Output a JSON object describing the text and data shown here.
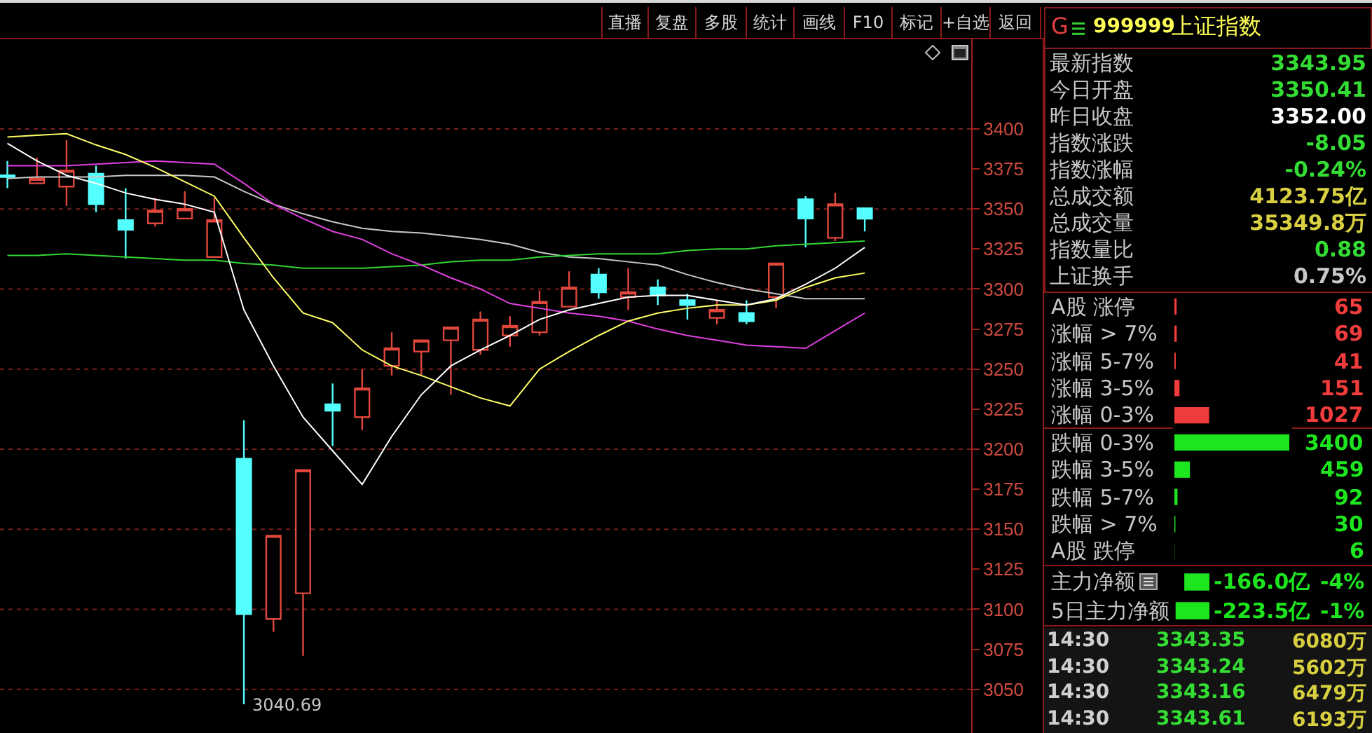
{
  "chart_data": [
    {
      "type": "candlestick",
      "categories": [
        null,
        null,
        null,
        null,
        null,
        null,
        null,
        null,
        null,
        null,
        null,
        null,
        null,
        null,
        null,
        null,
        null,
        null,
        null,
        null,
        null,
        null,
        null,
        null,
        null,
        null,
        null,
        null,
        null,
        null
      ],
      "ylim": [
        3021,
        3456
      ],
      "yticks": [
        3050,
        3075,
        3100,
        3125,
        3150,
        3175,
        3200,
        3225,
        3250,
        3275,
        3300,
        3325,
        3350,
        3375,
        3400
      ],
      "grid": "y",
      "tick_labels": "y",
      "annotations": [
        "3040.69"
      ],
      "series": [
        {
          "type": "line",
          "color": "#c8c8c8",
          "values": [
            3369,
            3370,
            3370,
            3370,
            3371,
            3371,
            3371,
            3370,
            3361,
            3353,
            3347,
            3342,
            3338,
            3336,
            3335,
            3333,
            3331,
            3328,
            3323,
            3320,
            3319,
            3317,
            3315,
            3309,
            3304,
            3300,
            3297,
            3294,
            3294,
            3294
          ]
        },
        {
          "type": "line",
          "color": "#33d633",
          "values": [
            3321,
            3321,
            3322,
            3321,
            3320,
            3319,
            3318,
            3318,
            3316,
            3315,
            3313,
            3313,
            3313,
            3314,
            3315,
            3317,
            3318,
            3318,
            3320,
            3321,
            3322,
            3322,
            3322,
            3324,
            3325,
            3325,
            3327,
            3328,
            3329,
            3330
          ]
        },
        {
          "type": "line",
          "color": "#e040e0",
          "values": [
            3377,
            3377,
            3377,
            3378,
            3379,
            3380,
            3379,
            3378,
            3366,
            3353,
            3344,
            3336,
            3331,
            3322,
            3315,
            3307,
            3300,
            3291,
            3288,
            3285,
            3283,
            3280,
            3275,
            3271,
            3268,
            3265,
            3264,
            3263,
            3274,
            3285
          ]
        },
        {
          "type": "line",
          "color": "#ffff66",
          "values": [
            3395,
            3396,
            3397,
            3390,
            3384,
            3376,
            3367,
            3358,
            3332,
            3307,
            3285,
            3279,
            3262,
            3252,
            3246,
            3239,
            3232,
            3227,
            3250,
            3261,
            3271,
            3280,
            3285,
            3288,
            3290,
            3290,
            3293,
            3301,
            3307,
            3310
          ]
        },
        {
          "type": "line",
          "color": "#ffffff",
          "values": [
            3391,
            3380,
            3371,
            3366,
            3360,
            3356,
            3353,
            3348,
            3287,
            3252,
            3220,
            3199,
            3178,
            3208,
            3234,
            3252,
            3262,
            3271,
            3281,
            3287,
            3291,
            3295,
            3296,
            3296,
            3293,
            3290,
            3294,
            3303,
            3313,
            3326
          ]
        },
        {
          "type": "candlestick",
          "colors": [
            "#54ffff",
            "#e0473c",
            "#e0473c",
            "#54ffff",
            "#54ffff",
            "#e0473c",
            "#e0473c",
            "#e0473c",
            "#54ffff",
            "#e0473c",
            "#e0473c",
            "#54ffff",
            "#e0473c",
            "#e0473c",
            "#e0473c",
            "#e0473c",
            "#e0473c",
            "#e0473c",
            "#e0473c",
            "#e0473c",
            "#54ffff",
            "#e0473c",
            "#54ffff",
            "#54ffff",
            "#e0473c",
            "#54ffff",
            "#e0473c",
            "#54ffff",
            "#e0473c",
            "#54ffff"
          ],
          "ohlc": [
            [
              3371,
              3380,
              3363,
              3370
            ],
            [
              3366,
              3382,
              3366,
              3369
            ],
            [
              3364,
              3393,
              3352,
              3374
            ],
            [
              3372,
              3377,
              3348,
              3353
            ],
            [
              3343,
              3363,
              3319,
              3337
            ],
            [
              3341,
              3357,
              3339,
              3349
            ],
            [
              3344,
              3361,
              3344,
              3350
            ],
            [
              3320,
              3357,
              3320,
              3343
            ],
            [
              3194,
              3218,
              3040.69,
              3097
            ],
            [
              3094,
              3146,
              3086,
              3146
            ],
            [
              3110,
              3187,
              3071,
              3187
            ],
            [
              3228,
              3241,
              3202,
              3224
            ],
            [
              3220,
              3250,
              3212,
              3238
            ],
            [
              3252,
              3273,
              3246,
              3263
            ],
            [
              3261,
              3268,
              3246,
              3268
            ],
            [
              3268,
              3276,
              3234,
              3276
            ],
            [
              3262,
              3286,
              3259,
              3281
            ],
            [
              3271,
              3283,
              3264,
              3277
            ],
            [
              3273,
              3299,
              3271,
              3292
            ],
            [
              3289,
              3311,
              3289,
              3301
            ],
            [
              3309,
              3313,
              3294,
              3298
            ],
            [
              3295,
              3313,
              3287,
              3298
            ],
            [
              3301,
              3306,
              3290,
              3296
            ],
            [
              3293,
              3297,
              3281,
              3290
            ],
            [
              3282,
              3293,
              3278,
              3287
            ],
            [
              3285,
              3293,
              3278,
              3280
            ],
            [
              3295,
              3316,
              3288,
              3316
            ],
            [
              3356,
              3358,
              3326,
              3344
            ],
            [
              3332,
              3360,
              3330,
              3353
            ],
            [
              3350.41,
              3351,
              3336,
              3343.95
            ]
          ]
        }
      ]
    },
    {
      "type": "other",
      "annotations": [
        "直播",
        "复盘",
        "多股",
        "统计",
        "画线",
        "F10",
        "标记",
        "+自选",
        "返回"
      ]
    },
    {
      "type": "other",
      "annotations": [
        "G",
        "999999",
        "上证指数"
      ]
    },
    {
      "type": "other",
      "annotations": [
        "最新指数",
        "3343.95",
        "今日开盘",
        "3350.41",
        "昨日收盘",
        "3352.00",
        "指数涨跌",
        "-8.05",
        "指数涨幅",
        "-0.24%",
        "总成交额",
        "4123.75亿",
        "总成交量",
        "35349.8万",
        "指数量比",
        "0.88",
        "上证换手",
        "0.75%"
      ]
    },
    {
      "type": "bar",
      "orientation": "horizontal",
      "categories": [
        "A股 涨停",
        "涨幅 > 7%",
        "涨幅 5-7%",
        "涨幅 3-5%",
        "涨幅 0-3%",
        "跌幅 0-3%",
        "跌幅 3-5%",
        "跌幅 5-7%",
        "跌幅 > 7%",
        "A股 跌停"
      ],
      "values": [
        65,
        69,
        41,
        151,
        1027,
        3400,
        459,
        92,
        30,
        6
      ],
      "colors": [
        "#f03c3c",
        "#f03c3c",
        "#f03c3c",
        "#f03c3c",
        "#f03c3c",
        "#1ee61e",
        "#1ee61e",
        "#1ee61e",
        "#1ee61e",
        "#1ee61e"
      ],
      "xlim": [
        0,
        3400
      ],
      "data_labels": true,
      "tick_labels": "y"
    },
    {
      "type": "bar",
      "orientation": "horizontal",
      "categories": [
        "主力净额",
        "5日主力净额"
      ],
      "values": [
        -166.0,
        -223.5
      ],
      "value_labels": [
        "-166.0亿",
        "-223.5亿"
      ],
      "colors": [
        "#1ee61e",
        "#1ee61e"
      ],
      "xlim": [
        -250,
        0
      ],
      "annotations": [
        "-4%",
        "-1%"
      ],
      "tick_labels": "y"
    },
    {
      "type": "other",
      "annotations": [
        "14:30",
        "3343.35",
        "6080万",
        "14:30",
        "3343.24",
        "5602万",
        "14:30",
        "3343.16",
        "6479万",
        "14:30",
        "3343.61",
        "6193万"
      ]
    }
  ]
}
